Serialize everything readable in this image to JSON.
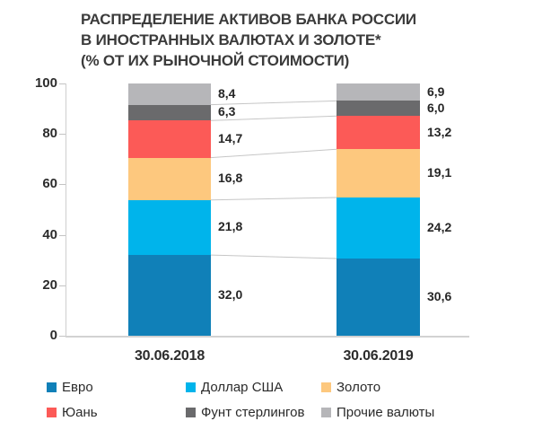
{
  "chart_data": {
    "type": "bar",
    "stacked": true,
    "title": "РАСПРЕДЕЛЕНИЕ АКТИВОВ БАНКА РОССИИ В ИНОСТРАННЫХ ВАЛЮТАХ И ЗОЛОТЕ* (% ОТ ИХ РЫНОЧНОЙ СТОИМОСТИ)",
    "title_lines": [
      "РАСПРЕДЕЛЕНИЕ АКТИВОВ БАНКА РОССИИ",
      "В ИНОСТРАННЫХ ВАЛЮТАХ И ЗОЛОТЕ*",
      "(% ОТ ИХ РЫНОЧНОЙ СТОИМОСТИ)"
    ],
    "categories": [
      "30.06.2018",
      "30.06.2019"
    ],
    "series": [
      {
        "name": "Евро",
        "color": "#1080b8",
        "values": [
          32.0,
          30.6
        ]
      },
      {
        "name": "Доллар США",
        "color": "#00b4eb",
        "values": [
          21.8,
          24.2
        ]
      },
      {
        "name": "Золото",
        "color": "#fdc87e",
        "values": [
          16.8,
          19.1
        ]
      },
      {
        "name": "Юань",
        "color": "#fc5a57",
        "values": [
          14.7,
          13.2
        ]
      },
      {
        "name": "Фунт стерлингов",
        "color": "#6a6a6c",
        "values": [
          6.3,
          6.0
        ]
      },
      {
        "name": "Прочие валюты",
        "color": "#b6b6b9",
        "values": [
          8.4,
          6.9
        ]
      }
    ],
    "ylim": [
      0,
      100
    ],
    "yticks": [
      0,
      20,
      40,
      60,
      80,
      100
    ],
    "grid": false,
    "legend_position": "bottom",
    "decimal_separator": ",",
    "connector_lines": true,
    "axis_color": "#cfcfcf",
    "connector_color": "#c6c6c6",
    "text_color": "#262626"
  }
}
